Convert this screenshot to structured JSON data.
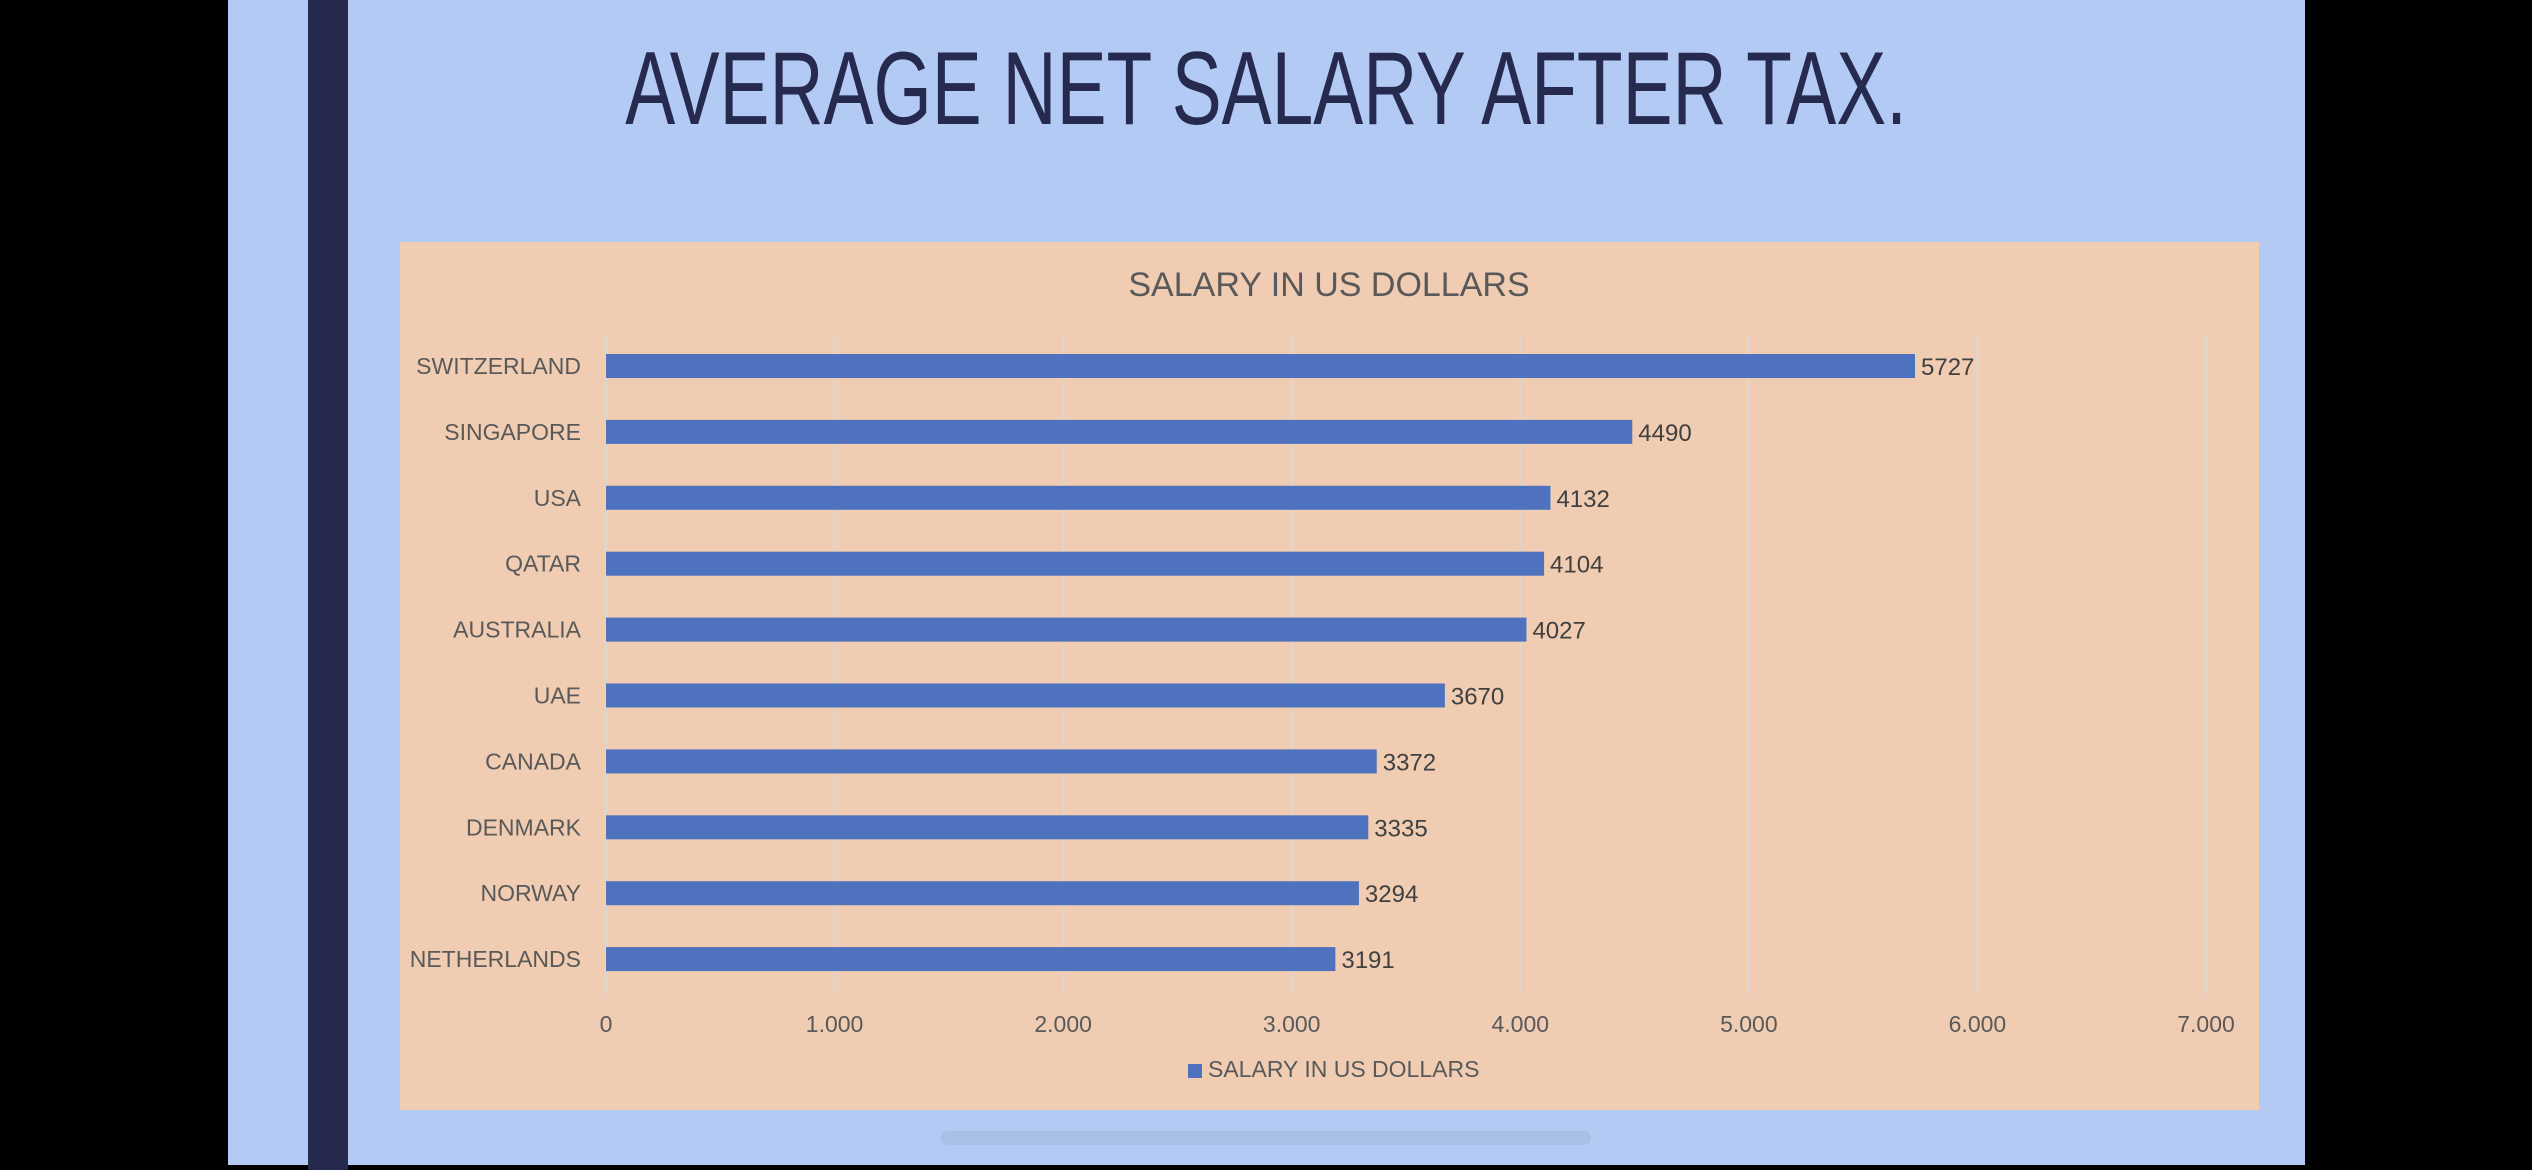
{
  "slide": {
    "title": "AVERAGE NET SALARY AFTER TAX."
  },
  "colors": {
    "background": "#b3caf5",
    "accent_bar": "#262a4f",
    "chart_area": "#f0cdb2",
    "bar": "#4e72bd",
    "text": "#595959"
  },
  "chart_data": {
    "type": "bar",
    "orientation": "horizontal",
    "title": "SALARY IN US DOLLARS",
    "categories": [
      "SWITZERLAND",
      "SINGAPORE ",
      "USA",
      "QATAR",
      "AUSTRALIA",
      "UAE",
      "CANADA",
      "DENMARK",
      "NORWAY",
      "NETHERLANDS"
    ],
    "series": [
      {
        "name": "SALARY IN US DOLLARS",
        "values": [
          5727,
          4490,
          4132,
          4104,
          4027,
          3670,
          3372,
          3335,
          3294,
          3191
        ]
      }
    ],
    "xlim": [
      0,
      7000
    ],
    "xticks": [
      0,
      1000,
      2000,
      3000,
      4000,
      5000,
      6000,
      7000
    ],
    "xtick_labels": [
      "0",
      "1.000",
      "2.000",
      "3.000",
      "4.000",
      "5.000",
      "6.000",
      "7.000"
    ],
    "grid": "vertical",
    "legend": "bottom",
    "data_labels": true
  }
}
